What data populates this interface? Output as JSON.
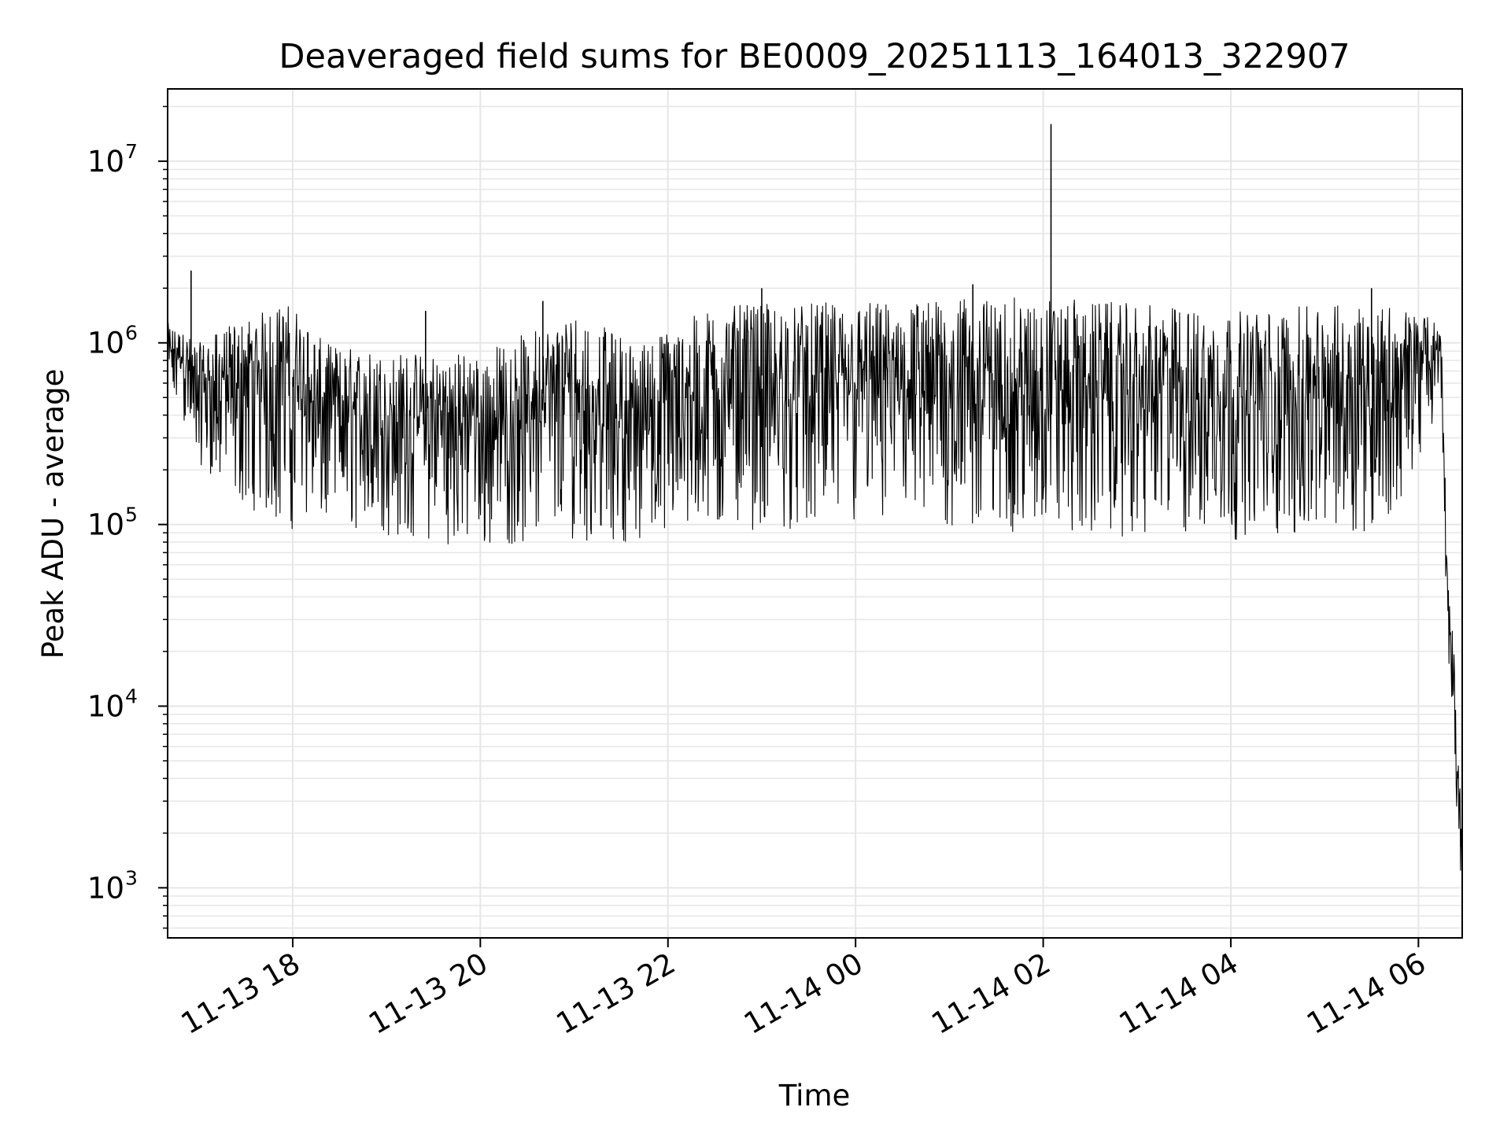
{
  "chart_data": {
    "type": "line",
    "title": "Deaveraged field sums for BE0009_20251113_164013_322907",
    "xlabel": "Time",
    "ylabel": "Peak ADU - average",
    "yscale": "log",
    "grid": true,
    "line_color": "#000000",
    "grid_color": "#e6e6e6",
    "xlim": [
      "2025-11-13 16:40",
      "2025-11-14 06:28"
    ],
    "ylim": [
      530,
      25000000
    ],
    "x_ticks": [
      {
        "t": "2025-11-13 18:00",
        "label": "11-13 18"
      },
      {
        "t": "2025-11-13 20:00",
        "label": "11-13 20"
      },
      {
        "t": "2025-11-13 22:00",
        "label": "11-13 22"
      },
      {
        "t": "2025-11-14 00:00",
        "label": "11-14 00"
      },
      {
        "t": "2025-11-14 02:00",
        "label": "11-14 02"
      },
      {
        "t": "2025-11-14 04:00",
        "label": "11-14 04"
      },
      {
        "t": "2025-11-14 06:00",
        "label": "11-14 06"
      }
    ],
    "y_ticks": [
      {
        "value": 1000,
        "base": "10",
        "exp": "3"
      },
      {
        "value": 10000,
        "base": "10",
        "exp": "4"
      },
      {
        "value": 100000,
        "base": "10",
        "exp": "5"
      },
      {
        "value": 1000000,
        "base": "10",
        "exp": "6"
      },
      {
        "value": 10000000,
        "base": "10",
        "exp": "7"
      }
    ],
    "series": [
      {
        "envelope": [
          {
            "t": "2025-11-13 16:40",
            "high": 1300000,
            "low": 550000
          },
          {
            "t": "2025-11-13 17:00",
            "high": 1000000,
            "low": 200000
          },
          {
            "t": "2025-11-13 17:30",
            "high": 1400000,
            "low": 110000
          },
          {
            "t": "2025-11-13 18:00",
            "high": 1700000,
            "low": 80000
          },
          {
            "t": "2025-11-13 18:20",
            "high": 1000000,
            "low": 90000
          },
          {
            "t": "2025-11-13 19:00",
            "high": 900000,
            "low": 75000
          },
          {
            "t": "2025-11-13 20:00",
            "high": 900000,
            "low": 65000
          },
          {
            "t": "2025-11-13 21:00",
            "high": 1500000,
            "low": 70000
          },
          {
            "t": "2025-11-13 21:40",
            "high": 1000000,
            "low": 70000
          },
          {
            "t": "2025-11-13 22:30",
            "high": 1600000,
            "low": 80000
          },
          {
            "t": "2025-11-14 00:00",
            "high": 1700000,
            "low": 80000
          },
          {
            "t": "2025-11-14 02:00",
            "high": 1800000,
            "low": 75000
          },
          {
            "t": "2025-11-14 04:00",
            "high": 1500000,
            "low": 70000
          },
          {
            "t": "2025-11-14 05:40",
            "high": 1700000,
            "low": 80000
          },
          {
            "t": "2025-11-14 06:15",
            "high": 1300000,
            "low": 400000
          },
          {
            "t": "2025-11-14 06:18",
            "high": 80000,
            "low": 30000
          },
          {
            "t": "2025-11-14 06:22",
            "high": 25000,
            "low": 6000
          },
          {
            "t": "2025-11-14 06:25",
            "high": 10000,
            "low": 2000
          },
          {
            "t": "2025-11-14 06:28",
            "high": 1500,
            "low": 800
          }
        ],
        "spikes": [
          {
            "t": "2025-11-13 16:55",
            "value": 2500000
          },
          {
            "t": "2025-11-13 19:25",
            "value": 1500000
          },
          {
            "t": "2025-11-13 20:40",
            "value": 1700000
          },
          {
            "t": "2025-11-13 23:00",
            "value": 2000000
          },
          {
            "t": "2025-11-14 01:15",
            "value": 2100000
          },
          {
            "t": "2025-11-14 02:05",
            "value": 16000000
          },
          {
            "t": "2025-11-14 05:30",
            "value": 2000000
          }
        ]
      }
    ]
  }
}
